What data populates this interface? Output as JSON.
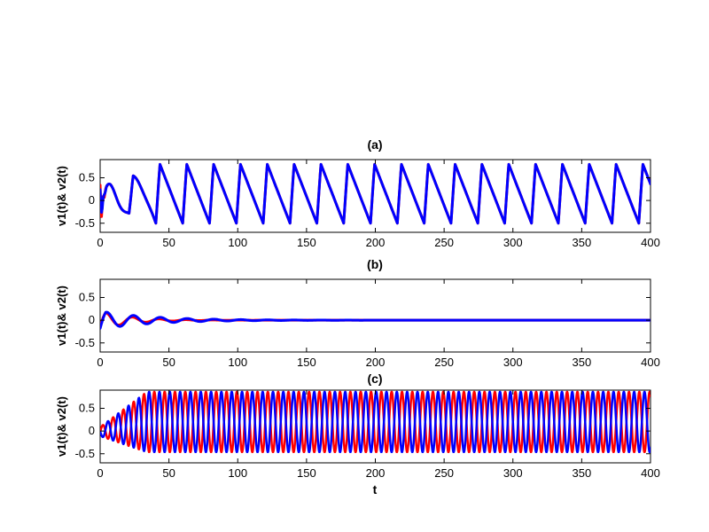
{
  "chart_data": [
    {
      "type": "line",
      "title": "(a)",
      "ylabel": "v1(t)& v2(t)",
      "xlabel": "",
      "xlim": [
        0,
        400
      ],
      "ylim": [
        -0.7,
        0.9
      ],
      "xticks": [
        "0",
        "50",
        "100",
        "150",
        "200",
        "250",
        "300",
        "350",
        "400"
      ],
      "yticks": [
        "-0.5",
        "0",
        "0.5"
      ],
      "grid": false,
      "series": [
        {
          "color": "#ff0000",
          "behavior": "relaxation oscillation, period ~19.5, range -0.5 to 0.8 (transient first ~40)"
        },
        {
          "color": "#0000ff",
          "behavior": "synchronized with red after initial transient"
        }
      ]
    },
    {
      "type": "line",
      "title": "(b)",
      "ylabel": "v1(t)& v2(t)",
      "xlabel": "",
      "xlim": [
        0,
        400
      ],
      "ylim": [
        -0.7,
        0.9
      ],
      "xticks": [
        "0",
        "50",
        "100",
        "150",
        "200",
        "250",
        "300",
        "350",
        "400"
      ],
      "yticks": [
        "-0.5",
        "0",
        "0.5"
      ],
      "grid": false,
      "series": [
        {
          "color": "#ff0000",
          "behavior": "damped oscillation decaying to 0 by ~t=60"
        },
        {
          "color": "#0000ff",
          "behavior": "damped oscillation decaying to 0 by ~t=200"
        }
      ]
    },
    {
      "type": "line",
      "title": "(c)",
      "ylabel": "v1(t)& v2(t)",
      "xlabel": "t",
      "xlim": [
        0,
        400
      ],
      "ylim": [
        -0.7,
        0.9
      ],
      "xticks": [
        "0",
        "50",
        "100",
        "150",
        "200",
        "250",
        "300",
        "350",
        "400"
      ],
      "yticks": [
        "-0.5",
        "0",
        "0.5"
      ],
      "grid": false,
      "series": [
        {
          "color": "#ff0000",
          "behavior": "oscillation, period ~7.5, growing to range -0.45 to 0.88 by t~40"
        },
        {
          "color": "#0000ff",
          "behavior": "oscillation anti-phase to red, period ~7.5, range -0.45 to 0.88"
        }
      ]
    }
  ]
}
